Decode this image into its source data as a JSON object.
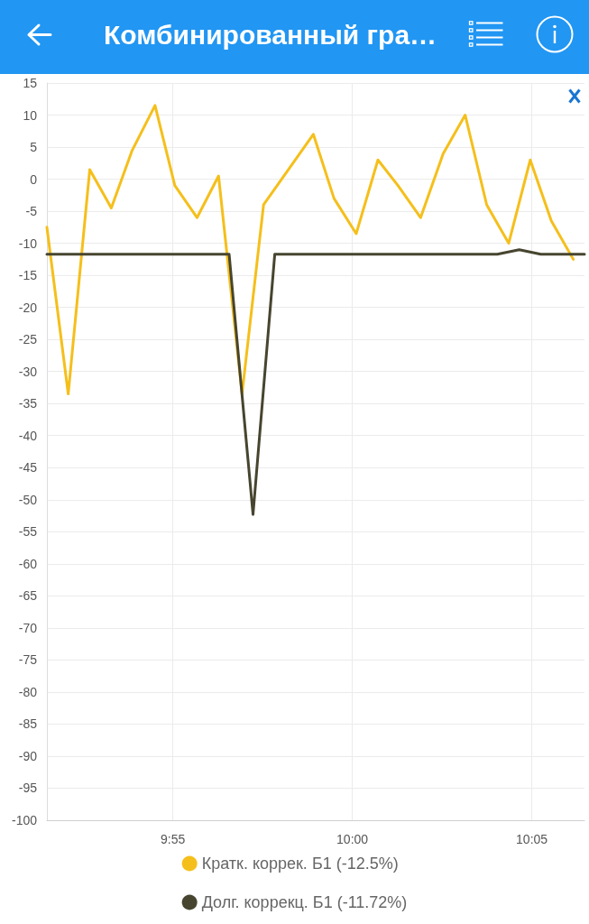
{
  "chart_data": {
    "type": "line",
    "title": "Комбинированный гра…",
    "x": [
      9.8582,
      9.8681,
      9.8781,
      9.8881,
      9.8978,
      9.9084,
      9.9176,
      9.9279,
      9.9379,
      9.9488,
      9.9588,
      9.9819,
      9.9915,
      10.0018,
      10.0119,
      10.0212,
      10.0317,
      10.0422,
      10.0524,
      10.0624,
      10.0726,
      10.0826,
      10.0924,
      10.1026
    ],
    "series": [
      {
        "name": "Кратк. коррек. Б1 (-12.5%)",
        "color": "#f5bf1b",
        "values": [
          -7.5,
          -33.5,
          1.5,
          -4.5,
          4.5,
          11.5,
          -1,
          -6,
          0.5,
          -33.5,
          -4,
          7,
          -3,
          -8.5,
          3,
          -1,
          -6,
          4,
          10,
          -4,
          -10,
          3,
          -6.5,
          -12.5
        ]
      },
      {
        "name": "Долг. коррекц. Б1 (-11.72%)",
        "color": "#47452f",
        "x": [
          9.8582,
          9.9428,
          9.9539,
          9.964,
          10.0673,
          10.0775,
          10.0875,
          10.1078
        ],
        "values": [
          -11.7,
          -11.7,
          -52.3,
          -11.7,
          -11.7,
          -11,
          -11.7,
          -11.7
        ]
      }
    ],
    "xlim": [
      9.8582,
      10.1078
    ],
    "xticks": [
      {
        "value": 9.91667,
        "label": "9:55"
      },
      {
        "value": 10,
        "label": "10:00"
      },
      {
        "value": 10.08333,
        "label": "10:05"
      }
    ],
    "ylim": [
      -100,
      15
    ],
    "yticks": [
      -100,
      -95,
      -90,
      -85,
      -80,
      -75,
      -70,
      -65,
      -60,
      -55,
      -50,
      -45,
      -40,
      -35,
      -30,
      -25,
      -20,
      -15,
      -10,
      -5,
      0,
      5,
      10,
      15
    ],
    "grid": true,
    "legend": "bottom",
    "marker": "none",
    "line_style": "solid"
  }
}
